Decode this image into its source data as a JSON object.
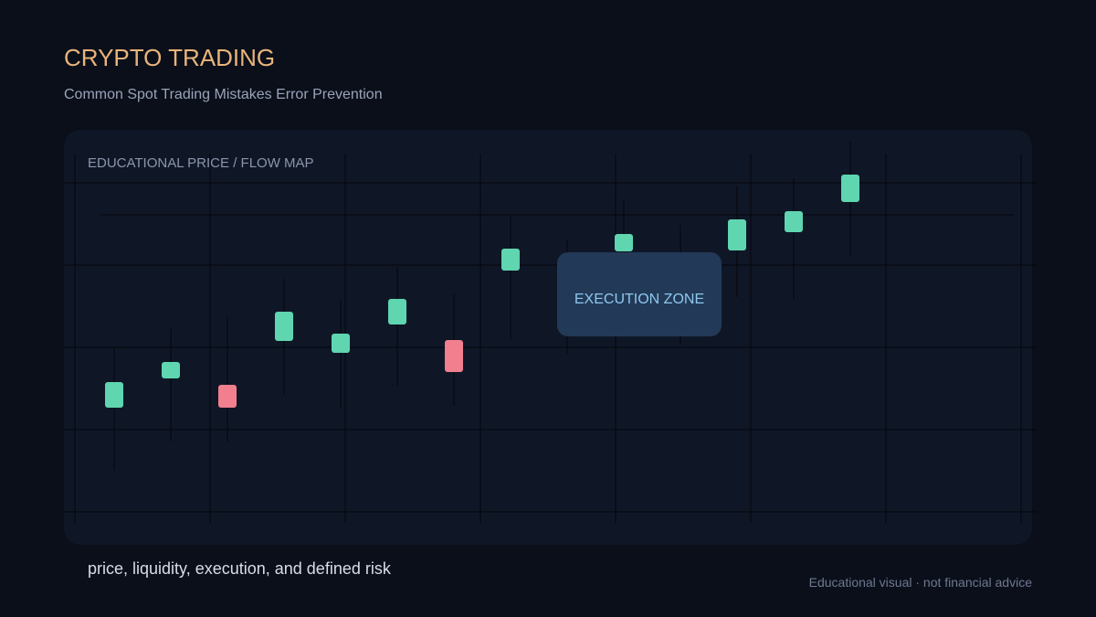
{
  "header": {
    "title": "CRYPTO TRADING",
    "subtitle": "Common Spot Trading Mistakes Error Prevention"
  },
  "panel": {
    "label": "EDUCATIONAL PRICE / FLOW MAP",
    "zone_label": "EXECUTION ZONE"
  },
  "footer": {
    "caption": "price, liquidity, execution, and defined risk",
    "disclaimer": "Educational visual · not financial advice"
  }
}
